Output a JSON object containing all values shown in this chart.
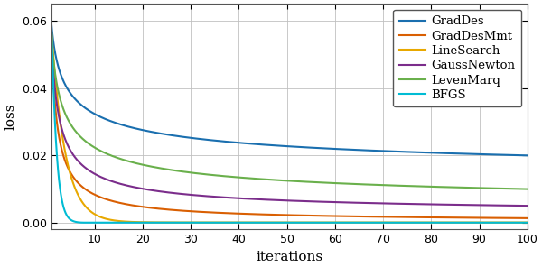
{
  "title": "",
  "xlabel": "iterations",
  "ylabel": "loss",
  "xlim": [
    1,
    100
  ],
  "ylim": [
    -0.002,
    0.065
  ],
  "yticks": [
    0,
    0.02,
    0.04,
    0.06
  ],
  "xticks": [
    10,
    20,
    30,
    40,
    50,
    60,
    70,
    80,
    90,
    100
  ],
  "legend_labels": [
    "GradDes",
    "GradDesMmt",
    "LineSearch",
    "GaussNewton",
    "LevenMarq",
    "BFGS"
  ],
  "colors": {
    "GradDes": "#1a6faf",
    "GradDesMmt": "#d95f02",
    "LineSearch": "#e8a800",
    "GaussNewton": "#7b2d8b",
    "LevenMarq": "#6ab04c",
    "BFGS": "#00bcd4"
  },
  "line_width": 1.5,
  "background_color": "#ffffff",
  "grid_color": "#c0c0c0"
}
